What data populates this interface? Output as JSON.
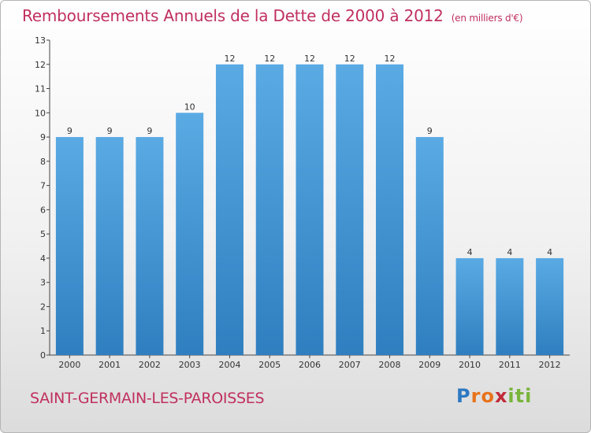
{
  "chart_data": {
    "type": "bar",
    "title": "Remboursements Annuels de la Dette de 2000 à 2012",
    "subtitle": "(en milliers d'€)",
    "categories": [
      "2000",
      "2001",
      "2002",
      "2003",
      "2004",
      "2005",
      "2006",
      "2007",
      "2008",
      "2009",
      "2010",
      "2011",
      "2012"
    ],
    "values": [
      9,
      9,
      9,
      10,
      12,
      12,
      12,
      12,
      12,
      9,
      4,
      4,
      4
    ],
    "ylim": [
      0,
      13
    ],
    "yticks": [
      0,
      1,
      2,
      3,
      4,
      5,
      6,
      7,
      8,
      9,
      10,
      11,
      12,
      13
    ],
    "xlabel": "",
    "ylabel": "",
    "grid": false,
    "bar_color": "#5aaae4"
  },
  "commune": "SAINT-GERMAIN-LES-PAROISSES",
  "logo": {
    "letters": [
      "P",
      "r",
      "o",
      "x",
      "i",
      "t",
      "i"
    ],
    "colors": [
      "#2e78c2",
      "#e8731c",
      "#e8731c",
      "#c12a3a",
      "#79b43a",
      "#79b43a",
      "#79b43a"
    ]
  }
}
